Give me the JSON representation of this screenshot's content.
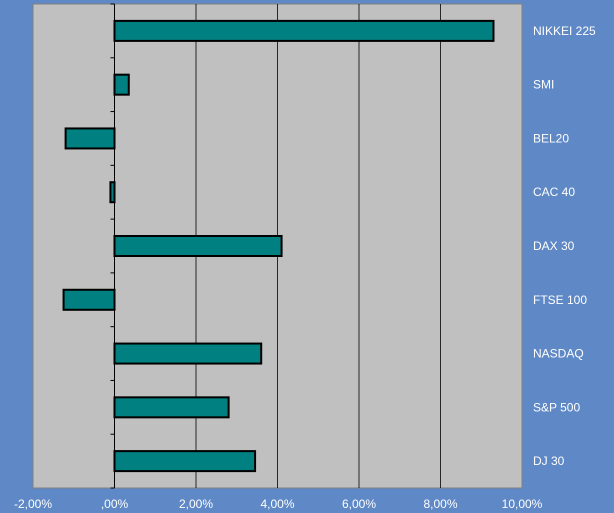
{
  "chart_data": {
    "type": "bar",
    "orientation": "horizontal",
    "categories": [
      "NIKKEI 225",
      "SMI",
      "BEL20",
      "CAC 40",
      "DAX 30",
      "FTSE 100",
      "NASDAQ",
      "S&P 500",
      "DJ 30"
    ],
    "values": [
      9.3,
      0.35,
      -1.2,
      -0.1,
      4.1,
      -1.25,
      3.6,
      2.8,
      3.45
    ],
    "xlim": [
      -2,
      10
    ],
    "x_ticks": [
      -2,
      0,
      2,
      4,
      6,
      8,
      10
    ],
    "x_tick_labels": [
      "-2,00%",
      ",00%",
      "2,00%",
      "4,00%",
      "6,00%",
      "8,00%",
      "10,00%"
    ],
    "grid": "vertical",
    "legend": "none",
    "title": "",
    "xlabel": "",
    "ylabel": "",
    "colors": {
      "background": "#5e88c6",
      "plot_area": "#c0c0c0",
      "bar_fill": "#008080",
      "bar_stroke": "#000000",
      "grid": "#000000",
      "text": "#ffffff"
    }
  }
}
